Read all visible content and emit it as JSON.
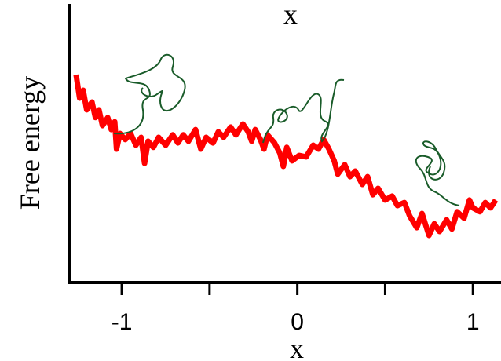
{
  "chart_data": {
    "type": "line",
    "title": "x",
    "x_label": "x",
    "y_label": "Free energy",
    "xlim": [
      -1.3,
      1.16
    ],
    "xticks": [
      -1,
      0,
      1
    ],
    "xminorticks": [
      -0.5,
      0.5
    ],
    "ylim": [
      0,
      10
    ],
    "series": [
      {
        "color": "#ff0000",
        "x": [
          -1.26,
          -1.24,
          -1.22,
          -1.2,
          -1.17,
          -1.15,
          -1.13,
          -1.11,
          -1.08,
          -1.06,
          -1.04,
          -1.03,
          -1.01,
          -0.98,
          -0.95,
          -0.92,
          -0.89,
          -0.87,
          -0.85,
          -0.82,
          -0.79,
          -0.75,
          -0.71,
          -0.68,
          -0.65,
          -0.62,
          -0.58,
          -0.55,
          -0.52,
          -0.48,
          -0.45,
          -0.42,
          -0.38,
          -0.35,
          -0.31,
          -0.28,
          -0.26,
          -0.24,
          -0.21,
          -0.19,
          -0.17,
          -0.13,
          -0.1,
          -0.08,
          -0.06,
          -0.03,
          0.01,
          0.05,
          0.09,
          0.12,
          0.15,
          0.18,
          0.21,
          0.23,
          0.27,
          0.3,
          0.33,
          0.37,
          0.4,
          0.43,
          0.46,
          0.5,
          0.54,
          0.57,
          0.61,
          0.64,
          0.68,
          0.71,
          0.75,
          0.78,
          0.81,
          0.85,
          0.88,
          0.91,
          0.95,
          0.98,
          1.0,
          1.04,
          1.07,
          1.1,
          1.13
        ],
        "values": [
          7.46,
          6.62,
          6.9,
          6.2,
          6.48,
          5.92,
          6.2,
          5.63,
          5.92,
          5.49,
          5.77,
          4.79,
          5.35,
          5.13,
          5.35,
          4.93,
          5.21,
          4.28,
          5.07,
          4.85,
          5.21,
          4.93,
          5.3,
          5.01,
          5.3,
          5.07,
          5.49,
          4.79,
          5.21,
          5.01,
          5.41,
          5.21,
          5.58,
          5.3,
          5.69,
          5.41,
          5.07,
          5.49,
          5.13,
          4.79,
          5.3,
          5.01,
          4.65,
          4.17,
          4.85,
          4.37,
          4.56,
          4.51,
          4.93,
          4.79,
          5.13,
          4.79,
          4.37,
          3.89,
          4.23,
          3.8,
          4.0,
          3.52,
          3.8,
          3.15,
          3.38,
          2.96,
          3.1,
          2.76,
          2.87,
          2.39,
          1.97,
          2.48,
          1.69,
          2.11,
          1.83,
          2.25,
          1.92,
          2.54,
          2.31,
          2.96,
          2.68,
          2.54,
          2.87,
          2.68,
          2.96
        ]
      }
    ]
  }
}
